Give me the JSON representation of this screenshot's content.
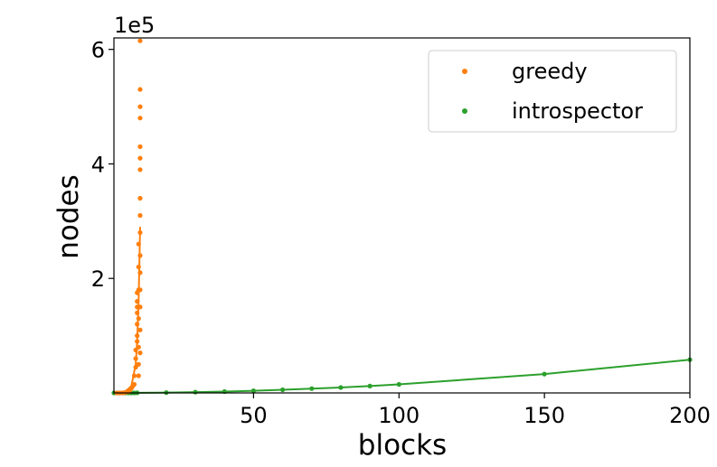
{
  "chart_data": {
    "type": "scatter",
    "xlabel": "blocks",
    "ylabel": "nodes",
    "offset_text": "1e5",
    "xlim": [
      2,
      200
    ],
    "ylim": [
      0,
      6.2
    ],
    "y_scale_factor": 100000,
    "x_ticks": [
      {
        "value": 50,
        "label": "50"
      },
      {
        "value": 100,
        "label": "100"
      },
      {
        "value": 150,
        "label": "150"
      },
      {
        "value": 200,
        "label": "200"
      }
    ],
    "y_ticks": [
      {
        "value": 2,
        "label": "2"
      },
      {
        "value": 4,
        "label": "4"
      },
      {
        "value": 6,
        "label": "6"
      }
    ],
    "grid": false,
    "legend_position": "top-right",
    "series": [
      {
        "name": "greedy",
        "color": "#ff7f0e",
        "points": [
          [
            3,
            0.0
          ],
          [
            4,
            0.0
          ],
          [
            5,
            0.0
          ],
          [
            6,
            0.01
          ],
          [
            7,
            0.02
          ],
          [
            7.5,
            0.05
          ],
          [
            8,
            0.08
          ],
          [
            8.5,
            0.12
          ],
          [
            9,
            0.15
          ],
          [
            9,
            0.3
          ],
          [
            9.5,
            0.45
          ],
          [
            9.5,
            0.6
          ],
          [
            9.5,
            0.75
          ],
          [
            10,
            0.9
          ],
          [
            10,
            1.0
          ],
          [
            10,
            1.2
          ],
          [
            10,
            1.4
          ],
          [
            10,
            1.5
          ],
          [
            10,
            1.6
          ],
          [
            10,
            1.75
          ],
          [
            10.5,
            0.3
          ],
          [
            10.5,
            0.5
          ],
          [
            10.5,
            0.8
          ],
          [
            10.5,
            1.3
          ],
          [
            10.5,
            1.8
          ],
          [
            10.5,
            2.2
          ],
          [
            10.5,
            2.6
          ],
          [
            11,
            0.7
          ],
          [
            11,
            1.1
          ],
          [
            11,
            1.5
          ],
          [
            11,
            1.8
          ],
          [
            11,
            2.1
          ],
          [
            11,
            2.4
          ],
          [
            11,
            2.8
          ],
          [
            11,
            3.1
          ],
          [
            11,
            3.4
          ],
          [
            11,
            3.9
          ],
          [
            11,
            4.1
          ],
          [
            11,
            4.3
          ],
          [
            11,
            4.8
          ],
          [
            11,
            5.0
          ],
          [
            11,
            5.3
          ],
          [
            11,
            6.15
          ]
        ],
        "fit": [
          [
            2,
            0.0
          ],
          [
            6,
            0.03
          ],
          [
            8,
            0.12
          ],
          [
            9.5,
            0.5
          ],
          [
            10,
            0.9
          ],
          [
            10.5,
            1.6
          ],
          [
            11,
            2.9
          ]
        ]
      },
      {
        "name": "introspector",
        "color": "#2ca02c",
        "points": [
          [
            2,
            0.0
          ],
          [
            3,
            0.0
          ],
          [
            4,
            0.0
          ],
          [
            5,
            0.0
          ],
          [
            6,
            0.0
          ],
          [
            7,
            0.0
          ],
          [
            8,
            0.0
          ],
          [
            9,
            0.0
          ],
          [
            10,
            0.002
          ],
          [
            20,
            0.006
          ],
          [
            30,
            0.014
          ],
          [
            40,
            0.024
          ],
          [
            50,
            0.038
          ],
          [
            60,
            0.055
          ],
          [
            70,
            0.075
          ],
          [
            80,
            0.095
          ],
          [
            90,
            0.12
          ],
          [
            100,
            0.15
          ],
          [
            150,
            0.33
          ],
          [
            200,
            0.58
          ]
        ],
        "fit": [
          [
            2,
            0.0
          ],
          [
            10,
            0.002
          ],
          [
            20,
            0.006
          ],
          [
            30,
            0.014
          ],
          [
            40,
            0.024
          ],
          [
            50,
            0.038
          ],
          [
            60,
            0.055
          ],
          [
            70,
            0.075
          ],
          [
            80,
            0.095
          ],
          [
            90,
            0.12
          ],
          [
            100,
            0.15
          ],
          [
            150,
            0.33
          ],
          [
            200,
            0.58
          ]
        ]
      }
    ]
  }
}
